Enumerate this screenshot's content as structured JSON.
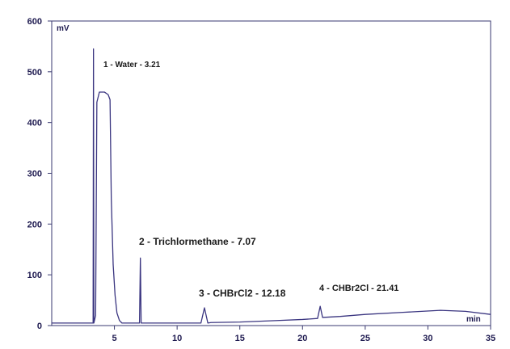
{
  "chart_data": {
    "type": "line",
    "title": "",
    "xlabel": "",
    "ylabel": "",
    "x_unit": "min",
    "y_unit": "mV",
    "xlim": [
      0,
      35
    ],
    "ylim": [
      0,
      600
    ],
    "x_ticks": [
      5,
      10,
      15,
      20,
      25,
      30,
      35
    ],
    "y_ticks": [
      0,
      100,
      200,
      300,
      400,
      500,
      600
    ],
    "grid": false,
    "legend": "none",
    "line_color": "#3a3580",
    "series": [
      {
        "points": [
          [
            0,
            5
          ],
          [
            3.3,
            5
          ],
          [
            3.33,
            545
          ],
          [
            3.36,
            5
          ],
          [
            3.5,
            20
          ],
          [
            3.6,
            440
          ],
          [
            3.8,
            460
          ],
          [
            4.2,
            460
          ],
          [
            4.5,
            455
          ],
          [
            4.65,
            445
          ],
          [
            4.75,
            250
          ],
          [
            4.9,
            120
          ],
          [
            5.05,
            60
          ],
          [
            5.2,
            25
          ],
          [
            5.4,
            10
          ],
          [
            5.6,
            5
          ],
          [
            7.0,
            5
          ],
          [
            7.07,
            133
          ],
          [
            7.13,
            5
          ],
          [
            11.9,
            5
          ],
          [
            12.18,
            35
          ],
          [
            12.45,
            5
          ],
          [
            12.7,
            6
          ],
          [
            15,
            7
          ],
          [
            18,
            10
          ],
          [
            20,
            12
          ],
          [
            21.2,
            14
          ],
          [
            21.41,
            38
          ],
          [
            21.6,
            16
          ],
          [
            23,
            18
          ],
          [
            25,
            22
          ],
          [
            28,
            26
          ],
          [
            31,
            30
          ],
          [
            33,
            28
          ],
          [
            35,
            22
          ]
        ]
      }
    ],
    "peaks": [
      {
        "label": "1 - Water - 3.21",
        "x": 3.21
      },
      {
        "label": "2 - Trichlormethane - 7.07",
        "x": 7.07
      },
      {
        "label": "3 - CHBrCl2 - 12.18",
        "x": 12.18
      },
      {
        "label": "4 - CHBr2Cl - 21.41",
        "x": 21.41
      }
    ]
  }
}
